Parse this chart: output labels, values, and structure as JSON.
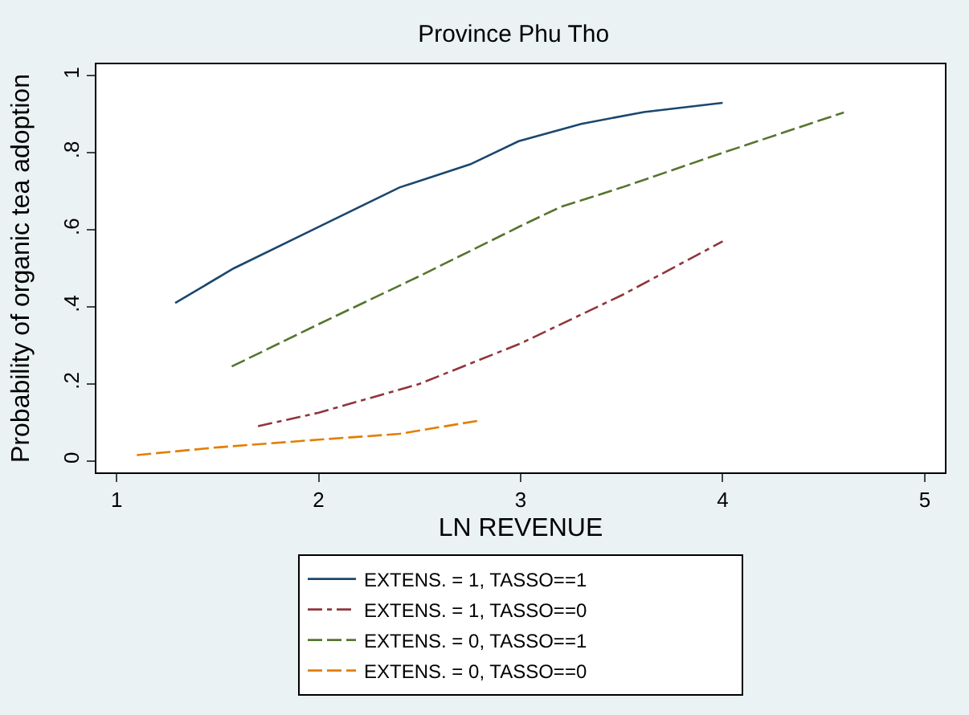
{
  "chart_data": {
    "type": "line",
    "title": "Province Phu Tho",
    "xlabel": "LN REVENUE",
    "ylabel": "Probability of organic tea adoption",
    "xlim": [
      0.9,
      5.1
    ],
    "xticks": [
      1,
      2,
      3,
      4,
      5
    ],
    "ylim": [
      -0.03,
      1.03
    ],
    "yticks": [
      {
        "value": 0,
        "label": "0"
      },
      {
        "value": 0.2,
        "label": ".2"
      },
      {
        "value": 0.4,
        "label": ".4"
      },
      {
        "value": 0.6,
        "label": ".6"
      },
      {
        "value": 0.8,
        "label": ".8"
      },
      {
        "value": 1,
        "label": "1"
      }
    ],
    "grid": false,
    "legend": "bottom",
    "marker": "none",
    "series": [
      {
        "name": "EXTENS. = 1, TASSO==1",
        "color": "#1a476f",
        "line_style": "solid",
        "x": [
          1.29,
          1.58,
          1.97,
          2.4,
          2.75,
          2.99,
          3.3,
          3.61,
          4.0
        ],
        "values": [
          0.41,
          0.5,
          0.6,
          0.71,
          0.77,
          0.83,
          0.875,
          0.906,
          0.93
        ]
      },
      {
        "name": "EXTENS. = 1, TASSO==0",
        "color": "#90353b",
        "line_style": "dashdot",
        "x": [
          1.7,
          2.0,
          2.5,
          3.0,
          3.5,
          4.0
        ],
        "values": [
          0.09,
          0.125,
          0.2,
          0.305,
          0.43,
          0.57
        ]
      },
      {
        "name": "EXTENS. = 0, TASSO==1",
        "color": "#55752f",
        "line_style": "dashed",
        "x": [
          1.57,
          2.0,
          2.5,
          3.0,
          3.2,
          3.5,
          4.0,
          4.6
        ],
        "values": [
          0.245,
          0.355,
          0.48,
          0.61,
          0.66,
          0.71,
          0.8,
          0.905
        ]
      },
      {
        "name": "EXTENS. = 0, TASSO==0",
        "color": "#e37e00",
        "line_style": "dashed",
        "x": [
          1.1,
          1.5,
          2.0,
          2.4,
          2.8
        ],
        "values": [
          0.015,
          0.035,
          0.055,
          0.07,
          0.105
        ]
      }
    ]
  }
}
